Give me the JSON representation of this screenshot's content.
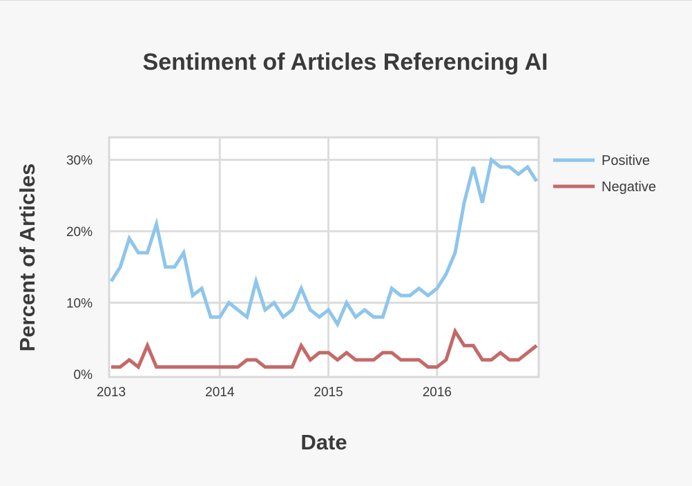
{
  "chart_data": {
    "type": "line",
    "title": "Sentiment of Articles Referencing AI",
    "xlabel": "Date",
    "ylabel": "Percent of Articles",
    "x_ticks": [
      "2013",
      "2014",
      "2015",
      "2016"
    ],
    "y_ticks": [
      "0%",
      "10%",
      "20%",
      "30%"
    ],
    "xlim": [
      "2013-01",
      "2016-12"
    ],
    "ylim": [
      0,
      32
    ],
    "grid": true,
    "legend_position": "right",
    "x": [
      "2013-01",
      "2013-02",
      "2013-03",
      "2013-04",
      "2013-05",
      "2013-06",
      "2013-07",
      "2013-08",
      "2013-09",
      "2013-10",
      "2013-11",
      "2013-12",
      "2014-01",
      "2014-02",
      "2014-03",
      "2014-04",
      "2014-05",
      "2014-06",
      "2014-07",
      "2014-08",
      "2014-09",
      "2014-10",
      "2014-11",
      "2014-12",
      "2015-01",
      "2015-02",
      "2015-03",
      "2015-04",
      "2015-05",
      "2015-06",
      "2015-07",
      "2015-08",
      "2015-09",
      "2015-10",
      "2015-11",
      "2015-12",
      "2016-01",
      "2016-02",
      "2016-03",
      "2016-04",
      "2016-05",
      "2016-06",
      "2016-07",
      "2016-08",
      "2016-09",
      "2016-10",
      "2016-11",
      "2016-12"
    ],
    "series": [
      {
        "name": "Positive",
        "color": "#8ec5ec",
        "values": [
          13,
          15,
          19,
          17,
          17,
          21,
          15,
          15,
          17,
          11,
          12,
          8,
          8,
          10,
          9,
          8,
          13,
          9,
          10,
          8,
          9,
          12,
          9,
          8,
          9,
          7,
          10,
          8,
          9,
          8,
          8,
          12,
          11,
          11,
          12,
          11,
          12,
          14,
          17,
          24,
          29,
          24,
          30,
          29,
          29,
          28,
          29,
          27
        ]
      },
      {
        "name": "Negative",
        "color": "#c36a68",
        "values": [
          1,
          1,
          2,
          1,
          4,
          1,
          1,
          1,
          1,
          1,
          1,
          1,
          1,
          1,
          1,
          2,
          2,
          1,
          1,
          1,
          1,
          4,
          2,
          3,
          3,
          2,
          3,
          2,
          2,
          2,
          3,
          3,
          2,
          2,
          2,
          1,
          1,
          2,
          6,
          4,
          4,
          2,
          2,
          3,
          2,
          2,
          3,
          4
        ]
      }
    ]
  }
}
